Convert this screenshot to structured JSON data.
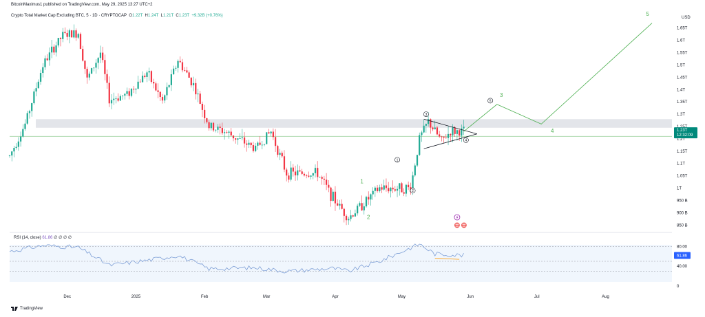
{
  "header": {
    "published": "BitcoinMaximus1 published on TradingView.com, May 29, 2025 13:27 UTC+2"
  },
  "symbol": {
    "name": "Crypto Total Market Cap Excluding BTC, 5 · 1D · CRYPTOCAP",
    "o_label": "O",
    "o_value": "1.22T",
    "h_label": "H",
    "h_value": "1.24T",
    "l_label": "L",
    "l_value": "1.21T",
    "c_label": "C",
    "c_value": "1.23T",
    "change": "+9.32B (+0.76%)"
  },
  "price_axis": {
    "currency": "USD",
    "ticks": [
      "1.65T",
      "1.6T",
      "1.55T",
      "1.5T",
      "1.45T",
      "1.4T",
      "1.35T",
      "1.3T",
      "1.25T",
      "1.2T",
      "1.15T",
      "1.1T",
      "1.05T",
      "1T",
      "950 B",
      "900 B",
      "850 B"
    ],
    "last_price": "1.23T",
    "countdown": "12:32:09"
  },
  "rsi": {
    "label": "RSI (14, close)",
    "value_text": "61.86",
    "na_marks": "∅ ∅ ∅ ∅",
    "ticks": [
      "80.00",
      "40.00",
      "0"
    ],
    "current_tag": "61.86"
  },
  "time_axis": {
    "labels": [
      "Dec",
      "2025",
      "Feb",
      "Mar",
      "Apr",
      "May",
      "Jun",
      "Jul",
      "Aug"
    ]
  },
  "wave_labels": {
    "green": [
      "1",
      "2",
      "3",
      "4",
      "5"
    ],
    "circled": [
      "1",
      "2",
      "3",
      "4",
      "5"
    ]
  },
  "footer": {
    "brand": "TradingView"
  },
  "colors": {
    "up": "#22ab94",
    "down": "#f23645",
    "wave": "#4caf50",
    "rsi": "#7e9fd6",
    "zone": "#d1d4dc",
    "accent": "#2962ff"
  },
  "chart_data": {
    "type": "candlestick",
    "ylim": [
      0.82,
      1.68
    ],
    "price_path": [
      {
        "t": "2024-11-05",
        "p": 1.13
      },
      {
        "t": "2024-11-12",
        "p": 1.26
      },
      {
        "t": "2024-11-20",
        "p": 1.5
      },
      {
        "t": "2024-11-25",
        "p": 1.57
      },
      {
        "t": "2024-11-29",
        "p": 1.62
      },
      {
        "t": "2024-12-06",
        "p": 1.63
      },
      {
        "t": "2024-12-10",
        "p": 1.44
      },
      {
        "t": "2024-12-16",
        "p": 1.55
      },
      {
        "t": "2024-12-20",
        "p": 1.36
      },
      {
        "t": "2024-12-28",
        "p": 1.38
      },
      {
        "t": "2025-01-06",
        "p": 1.47
      },
      {
        "t": "2025-01-13",
        "p": 1.35
      },
      {
        "t": "2025-01-20",
        "p": 1.52
      },
      {
        "t": "2025-01-27",
        "p": 1.42
      },
      {
        "t": "2025-02-03",
        "p": 1.25
      },
      {
        "t": "2025-02-10",
        "p": 1.23
      },
      {
        "t": "2025-02-24",
        "p": 1.16
      },
      {
        "t": "2025-03-03",
        "p": 1.23
      },
      {
        "t": "2025-03-10",
        "p": 1.06
      },
      {
        "t": "2025-03-24",
        "p": 1.06
      },
      {
        "t": "2025-03-31",
        "p": 0.96
      },
      {
        "t": "2025-04-07",
        "p": 0.88
      },
      {
        "t": "2025-04-21",
        "p": 1.0
      },
      {
        "t": "2025-05-05",
        "p": 1.0
      },
      {
        "t": "2025-05-09",
        "p": 1.2
      },
      {
        "t": "2025-05-13",
        "p": 1.27
      },
      {
        "t": "2025-05-19",
        "p": 1.19
      },
      {
        "t": "2025-05-23",
        "p": 1.23
      },
      {
        "t": "2025-05-29",
        "p": 1.23
      }
    ],
    "rsi_path": [
      {
        "t": "2024-11-05",
        "v": 70
      },
      {
        "t": "2024-11-20",
        "v": 82
      },
      {
        "t": "2024-12-06",
        "v": 78
      },
      {
        "t": "2024-12-20",
        "v": 42
      },
      {
        "t": "2025-01-06",
        "v": 52
      },
      {
        "t": "2025-01-20",
        "v": 62
      },
      {
        "t": "2025-02-03",
        "v": 35
      },
      {
        "t": "2025-02-24",
        "v": 37
      },
      {
        "t": "2025-03-10",
        "v": 30
      },
      {
        "t": "2025-03-31",
        "v": 36
      },
      {
        "t": "2025-04-07",
        "v": 30
      },
      {
        "t": "2025-04-21",
        "v": 50
      },
      {
        "t": "2025-05-09",
        "v": 85
      },
      {
        "t": "2025-05-16",
        "v": 65
      },
      {
        "t": "2025-05-29",
        "v": 62
      }
    ],
    "projection": [
      {
        "t": "2025-05-29",
        "p": 1.23
      },
      {
        "t": "2025-06-13",
        "p": 1.34
      },
      {
        "t": "2025-07-03",
        "p": 1.26
      },
      {
        "t": "2025-08-22",
        "p": 1.67
      }
    ],
    "resistance_zone": [
      1.245,
      1.28
    ],
    "horizontal_level": 1.21,
    "triangle": {
      "upper": [
        {
          "t": "2025-05-11",
          "p": 1.28
        },
        {
          "t": "2025-06-04",
          "p": 1.22
        }
      ],
      "lower": [
        {
          "t": "2025-05-11",
          "p": 1.16
        },
        {
          "t": "2025-06-04",
          "p": 1.22
        }
      ]
    },
    "rsi_divergence": [
      {
        "t": "2025-05-16",
        "v": 56
      },
      {
        "t": "2025-05-27",
        "v": 54
      }
    ]
  }
}
